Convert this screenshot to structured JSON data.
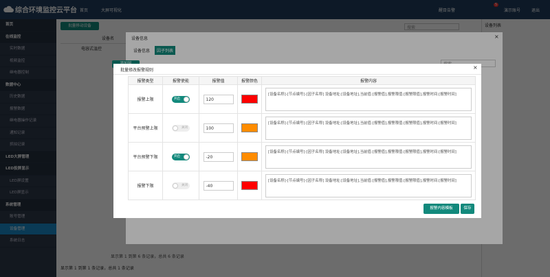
{
  "header": {
    "title": "综合环境监控云平台",
    "nav": [
      "首页",
      "大屏可视化"
    ],
    "alert": "醒目告警",
    "badge": "5",
    "account": "演示账号",
    "logout": "退出"
  },
  "sidebar": [
    {
      "label": "首页",
      "section": true
    },
    {
      "label": "在线监控",
      "section": true
    },
    {
      "label": "实时数据"
    },
    {
      "label": "视频监控"
    },
    {
      "label": "继电器控制"
    },
    {
      "label": "数据中心",
      "section": true
    },
    {
      "label": "历史数据"
    },
    {
      "label": "报警数据"
    },
    {
      "label": "继电器操作记录"
    },
    {
      "label": "通知记录"
    },
    {
      "label": "抓拍记录"
    },
    {
      "label": "LED大屏管理",
      "section": true
    },
    {
      "label": "LED投屏显示",
      "section": true
    },
    {
      "label": "LED屏设置"
    },
    {
      "label": "LED屏显示"
    },
    {
      "label": "系统管理",
      "section": true
    },
    {
      "label": "账号管理"
    },
    {
      "label": "设备管理",
      "active": true
    },
    {
      "label": "系统日志"
    }
  ],
  "main": {
    "button": "批量移动设备",
    "search": "搜索",
    "column": "设备名",
    "row": "电容式温控",
    "footer": "显示第 1 到第 1 条记录，总共 1 条记录",
    "right_title": "设备列表"
  },
  "device_modal": {
    "title": "设备信息",
    "tabs": [
      "设备信息",
      "因子列表"
    ],
    "button": "添加因",
    "search": "搜索",
    "footer": "显示第 1 到第 6 条记录，总共 6 条记录"
  },
  "alarm_modal": {
    "title": "批量修改报警规则",
    "columns": [
      "报警类型",
      "报警使能",
      "报警值",
      "报警颜色",
      "报警内容"
    ],
    "rows": [
      {
        "type": "报警上限",
        "enabled": true,
        "toggle": "开启",
        "value": 120,
        "color": "#ff0000",
        "content": "[设备名称]-[节点编号]-[因子名称] 设备地址:[设备地址],当前值:[报警值],报警限值:[报警限值],报警时间:[报警时间]"
      },
      {
        "type": "平台预警上限",
        "enabled": false,
        "toggle": "关闭",
        "value": 100,
        "color": "#ff8c00",
        "content": "[设备名称]-[节点编号]-[因子名称] 设备地址:[设备地址],当前值:[报警值],报警限值:[报警限值],报警时间:[报警时间]"
      },
      {
        "type": "平台预警下限",
        "enabled": true,
        "toggle": "开启",
        "value": -20,
        "color": "#ff8c00",
        "content": "[设备名称]-[节点编号]-[因子名称] 设备地址:[设备地址],当前值:[报警值],报警限值:[报警限值],报警时间:[报警时间]"
      },
      {
        "type": "报警下限",
        "enabled": false,
        "toggle": "关闭",
        "value": -40,
        "color": "#ff0000",
        "content": "[设备名称]-[节点编号]-[因子名称] 设备地址:[设备地址],当前值:[报警值],报警限值:[报警限值],报警时间:[报警时间]"
      }
    ],
    "buttons": [
      "报警内容模板",
      "保存"
    ]
  }
}
